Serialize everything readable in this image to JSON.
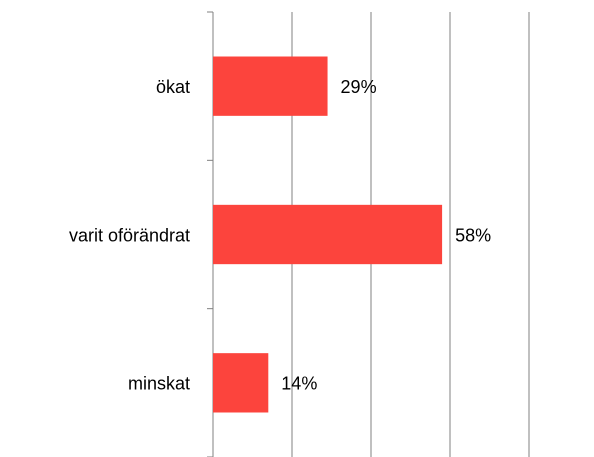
{
  "chart_data": {
    "type": "barh",
    "categories": [
      "ökat",
      "varit oförändrat",
      "minskat"
    ],
    "values": [
      29,
      58,
      14
    ],
    "value_labels": [
      "29%",
      "58%",
      "14%"
    ],
    "color": "#fc443d",
    "xlim": [
      0,
      80
    ],
    "xticks": [
      0,
      20,
      40,
      60,
      80
    ],
    "grid": true
  }
}
